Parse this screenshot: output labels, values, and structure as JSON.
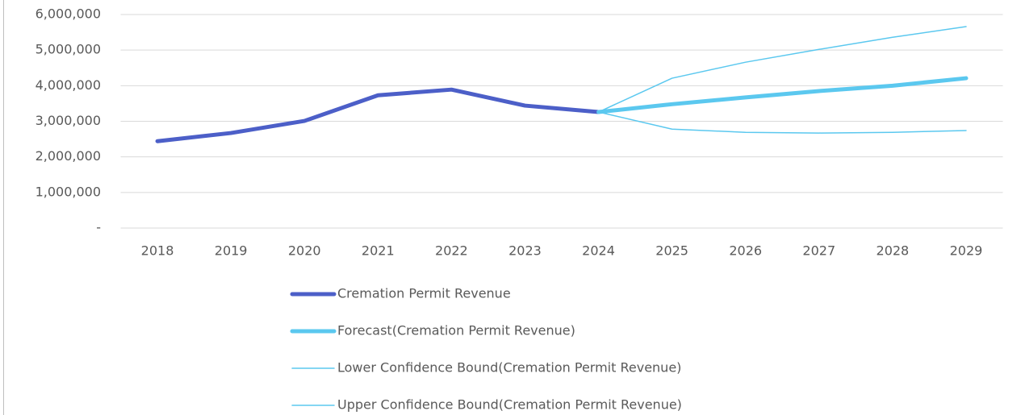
{
  "chart_data": {
    "type": "line",
    "categories": [
      "2018",
      "2019",
      "2020",
      "2021",
      "2022",
      "2023",
      "2024",
      "2025",
      "2026",
      "2027",
      "2028",
      "2029"
    ],
    "series": [
      {
        "name": "Cremation Permit Revenue",
        "color": "#4c5fc8",
        "line_width": 5,
        "values": [
          2440000,
          2670000,
          3010000,
          3730000,
          3890000,
          3440000,
          3260000,
          null,
          null,
          null,
          null,
          null
        ]
      },
      {
        "name": "Forecast(Cremation Permit Revenue)",
        "color": "#5bc8ef",
        "line_width": 5,
        "values": [
          null,
          null,
          null,
          null,
          null,
          null,
          3260000,
          3480000,
          3670000,
          3850000,
          4000000,
          4210000
        ]
      },
      {
        "name": "Lower Confidence Bound(Cremation Permit Revenue)",
        "color": "#5bc8ef",
        "line_width": 1.5,
        "values": [
          null,
          null,
          null,
          null,
          null,
          null,
          3260000,
          2780000,
          2690000,
          2670000,
          2690000,
          2740000
        ]
      },
      {
        "name": "Upper Confidence Bound(Cremation Permit Revenue)",
        "color": "#5bc8ef",
        "line_width": 1.5,
        "values": [
          null,
          null,
          null,
          null,
          null,
          null,
          3260000,
          4210000,
          4660000,
          5020000,
          5360000,
          5660000
        ]
      }
    ],
    "ylim": [
      0,
      6000000
    ],
    "yticks": [
      {
        "value": 0,
        "label": "-"
      },
      {
        "value": 1000000,
        "label": "1,000,000"
      },
      {
        "value": 2000000,
        "label": "2,000,000"
      },
      {
        "value": 3000000,
        "label": "3,000,000"
      },
      {
        "value": 4000000,
        "label": "4,000,000"
      },
      {
        "value": 5000000,
        "label": "5,000,000"
      },
      {
        "value": 6000000,
        "label": "6,000,000"
      }
    ],
    "grid": true
  }
}
